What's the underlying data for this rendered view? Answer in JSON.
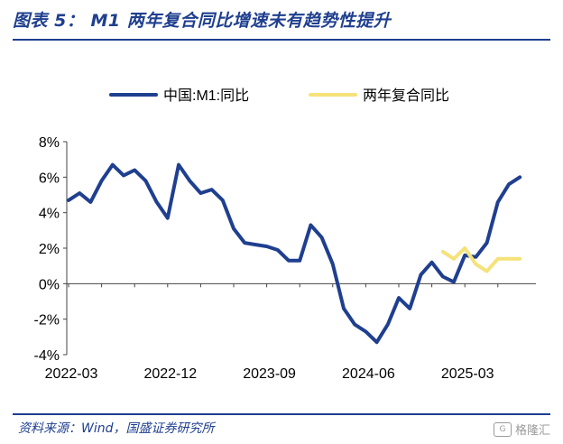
{
  "figure": {
    "title": "图表 5： M1 两年复合同比增速未有趋势性提升",
    "source": "资料来源：Wind，国盛证券研究所",
    "watermark": "格隆汇"
  },
  "chart_data": {
    "type": "line",
    "title": "",
    "xlabel": "",
    "ylabel": "",
    "ylim": [
      -4,
      8
    ],
    "yticks": [
      "8%",
      "6%",
      "4%",
      "2%",
      "0%",
      "-2%",
      "-4%"
    ],
    "xtick_labels": [
      "2022-03",
      "2022-12",
      "2023-09",
      "2024-06",
      "2025-03"
    ],
    "x": [
      "2022-03",
      "2022-04",
      "2022-05",
      "2022-06",
      "2022-07",
      "2022-08",
      "2022-09",
      "2022-10",
      "2022-11",
      "2022-12",
      "2023-01",
      "2023-02",
      "2023-03",
      "2023-04",
      "2023-05",
      "2023-06",
      "2023-07",
      "2023-08",
      "2023-09",
      "2023-10",
      "2023-11",
      "2023-12",
      "2024-01",
      "2024-02",
      "2024-03",
      "2024-04",
      "2024-05",
      "2024-06",
      "2024-07",
      "2024-08",
      "2024-09",
      "2024-10",
      "2024-11",
      "2024-12",
      "2025-01",
      "2025-02",
      "2025-03",
      "2025-04",
      "2025-05",
      "2025-06",
      "2025-07",
      "2025-08"
    ],
    "legend_position": "top",
    "grid": false,
    "series": [
      {
        "name": "中国:M1:同比",
        "color": "#1f3f8f",
        "values": [
          4.7,
          5.1,
          4.6,
          5.8,
          6.7,
          6.1,
          6.4,
          5.8,
          4.6,
          3.7,
          6.7,
          5.8,
          5.1,
          5.3,
          4.7,
          3.1,
          2.3,
          2.2,
          2.1,
          1.9,
          1.3,
          1.3,
          3.3,
          2.6,
          1.1,
          -1.4,
          -2.3,
          -2.7,
          -3.3,
          -2.3,
          -0.8,
          -1.4,
          0.5,
          1.2,
          0.4,
          0.1,
          1.6,
          1.5,
          2.3,
          4.6,
          5.6,
          6.0
        ]
      },
      {
        "name": "两年复合同比",
        "color": "#f5e27a",
        "values": [
          null,
          null,
          null,
          null,
          null,
          null,
          null,
          null,
          null,
          null,
          null,
          null,
          null,
          null,
          null,
          null,
          null,
          null,
          null,
          null,
          null,
          null,
          null,
          null,
          null,
          null,
          null,
          null,
          null,
          null,
          null,
          null,
          null,
          null,
          1.8,
          1.4,
          2.0,
          1.1,
          0.7,
          1.4,
          1.4,
          1.4
        ]
      }
    ]
  }
}
